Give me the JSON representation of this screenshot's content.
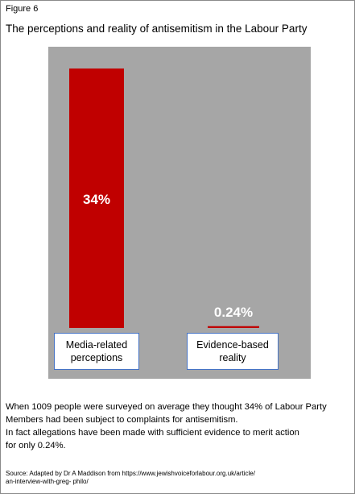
{
  "figure_label": "Figure 6",
  "chart_data": {
    "type": "bar",
    "title": "The perceptions  and reality of antisemitism in the Labour Party",
    "categories": [
      "Media-related perceptions",
      "Evidence-based reality"
    ],
    "category_lines": [
      [
        "Media-related",
        "perceptions"
      ],
      [
        "Evidence-based",
        "reality"
      ]
    ],
    "values": [
      34,
      0.24
    ],
    "data_labels": [
      "34%",
      "0.24%"
    ],
    "ylim": [
      0,
      34
    ],
    "grid": false,
    "bar_color": "#c00000",
    "plot_background": "#a6a6a6",
    "category_box_border": "#4472c4"
  },
  "note_lines": [
    "When 1009  people were surveyed on average they thought 34%  of Labour Party",
    "Members had been subject to complaints for antisemitism.",
    "In fact allegations have been made with sufficient evidence to merit action",
    "for only 0.24%."
  ],
  "source_lines": [
    "Source: Adapted by Dr A Maddison from https://www.jewishvoiceforlabour.org.uk/article/",
    "an-interview-with-greg- philo/"
  ]
}
